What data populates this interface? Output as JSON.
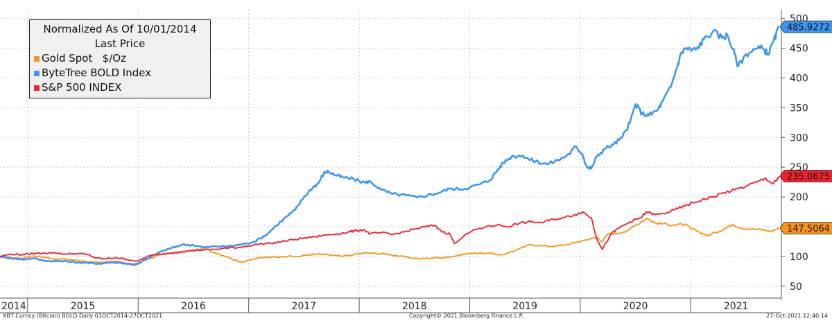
{
  "chart_data": {
    "type": "line",
    "legend": {
      "title": "Normalized As Of 10/01/2014",
      "subtitle": "Last Price",
      "placement": "top-left"
    },
    "yaxis": {
      "ticks": [
        50,
        100,
        150,
        200,
        250,
        300,
        350,
        400,
        450,
        500
      ],
      "ylim": [
        30,
        510
      ],
      "side": "right",
      "grid": true
    },
    "xaxis": {
      "year_labels": [
        "2014",
        "2015",
        "2016",
        "2017",
        "2018",
        "2019",
        "2020",
        "2021"
      ],
      "xlim": [
        2014.75,
        2021.82
      ],
      "grid": "vertical-years"
    },
    "series": [
      {
        "name": "Gold Spot   $/Oz",
        "color": "#f7941d",
        "last_label": "147.5064",
        "last_value": 147.5064,
        "points": [
          [
            2014.75,
            100
          ],
          [
            2014.85,
            98
          ],
          [
            2014.95,
            97
          ],
          [
            2015.05,
            101
          ],
          [
            2015.15,
            99
          ],
          [
            2015.25,
            95
          ],
          [
            2015.35,
            96
          ],
          [
            2015.45,
            93
          ],
          [
            2015.55,
            91
          ],
          [
            2015.65,
            90
          ],
          [
            2015.75,
            92
          ],
          [
            2015.85,
            90
          ],
          [
            2015.95,
            85
          ],
          [
            2016.0,
            87
          ],
          [
            2016.08,
            95
          ],
          [
            2016.2,
            103
          ],
          [
            2016.35,
            107
          ],
          [
            2016.45,
            109
          ],
          [
            2016.55,
            112
          ],
          [
            2016.62,
            112
          ],
          [
            2016.7,
            106
          ],
          [
            2016.8,
            100
          ],
          [
            2016.9,
            92
          ],
          [
            2016.96,
            91
          ],
          [
            2017.05,
            96
          ],
          [
            2017.15,
            99
          ],
          [
            2017.3,
            100
          ],
          [
            2017.45,
            100
          ],
          [
            2017.55,
            103
          ],
          [
            2017.65,
            104
          ],
          [
            2017.75,
            102
          ],
          [
            2017.85,
            100
          ],
          [
            2017.95,
            103
          ],
          [
            2018.05,
            106
          ],
          [
            2018.15,
            105
          ],
          [
            2018.25,
            104
          ],
          [
            2018.35,
            101
          ],
          [
            2018.45,
            98
          ],
          [
            2018.55,
            96
          ],
          [
            2018.62,
            97
          ],
          [
            2018.72,
            98
          ],
          [
            2018.85,
            100
          ],
          [
            2018.95,
            104
          ],
          [
            2019.05,
            106
          ],
          [
            2019.15,
            105
          ],
          [
            2019.3,
            103
          ],
          [
            2019.45,
            113
          ],
          [
            2019.55,
            120
          ],
          [
            2019.65,
            118
          ],
          [
            2019.75,
            117
          ],
          [
            2019.85,
            119
          ],
          [
            2019.95,
            123
          ],
          [
            2020.05,
            128
          ],
          [
            2020.15,
            132
          ],
          [
            2020.2,
            125
          ],
          [
            2020.25,
            138
          ],
          [
            2020.35,
            139
          ],
          [
            2020.45,
            146
          ],
          [
            2020.55,
            158
          ],
          [
            2020.6,
            164
          ],
          [
            2020.68,
            156
          ],
          [
            2020.75,
            155
          ],
          [
            2020.85,
            153
          ],
          [
            2020.95,
            154
          ],
          [
            2021.0,
            147
          ],
          [
            2021.08,
            141
          ],
          [
            2021.15,
            135
          ],
          [
            2021.22,
            140
          ],
          [
            2021.3,
            146
          ],
          [
            2021.38,
            154
          ],
          [
            2021.45,
            148
          ],
          [
            2021.55,
            146
          ],
          [
            2021.65,
            145
          ],
          [
            2021.72,
            142
          ],
          [
            2021.8,
            147.5064
          ]
        ]
      },
      {
        "name": "ByteTree BOLD Index",
        "color": "#3d97ee",
        "last_label": "485.9272",
        "last_value": 485.9272,
        "points": [
          [
            2014.75,
            100
          ],
          [
            2014.85,
            97
          ],
          [
            2014.95,
            95
          ],
          [
            2015.05,
            97
          ],
          [
            2015.15,
            93
          ],
          [
            2015.25,
            92
          ],
          [
            2015.35,
            92
          ],
          [
            2015.45,
            90
          ],
          [
            2015.55,
            89
          ],
          [
            2015.65,
            88
          ],
          [
            2015.75,
            90
          ],
          [
            2015.85,
            89
          ],
          [
            2015.95,
            87
          ],
          [
            2016.0,
            88
          ],
          [
            2016.08,
            96
          ],
          [
            2016.2,
            108
          ],
          [
            2016.3,
            114
          ],
          [
            2016.4,
            120
          ],
          [
            2016.5,
            119
          ],
          [
            2016.6,
            115
          ],
          [
            2016.7,
            117
          ],
          [
            2016.8,
            117
          ],
          [
            2016.9,
            119
          ],
          [
            2016.96,
            121
          ],
          [
            2017.05,
            125
          ],
          [
            2017.15,
            135
          ],
          [
            2017.25,
            152
          ],
          [
            2017.35,
            168
          ],
          [
            2017.42,
            178
          ],
          [
            2017.5,
            200
          ],
          [
            2017.58,
            216
          ],
          [
            2017.63,
            223
          ],
          [
            2017.68,
            240
          ],
          [
            2017.72,
            243
          ],
          [
            2017.78,
            237
          ],
          [
            2017.85,
            233
          ],
          [
            2017.95,
            230
          ],
          [
            2018.05,
            224
          ],
          [
            2018.1,
            226
          ],
          [
            2018.2,
            212
          ],
          [
            2018.3,
            205
          ],
          [
            2018.42,
            203
          ],
          [
            2018.52,
            199
          ],
          [
            2018.62,
            203
          ],
          [
            2018.72,
            207
          ],
          [
            2018.82,
            214
          ],
          [
            2018.92,
            213
          ],
          [
            2019.0,
            216
          ],
          [
            2019.1,
            222
          ],
          [
            2019.18,
            228
          ],
          [
            2019.25,
            245
          ],
          [
            2019.3,
            257
          ],
          [
            2019.38,
            268
          ],
          [
            2019.48,
            270
          ],
          [
            2019.55,
            262
          ],
          [
            2019.62,
            259
          ],
          [
            2019.7,
            255
          ],
          [
            2019.8,
            262
          ],
          [
            2019.9,
            272
          ],
          [
            2019.96,
            285
          ],
          [
            2020.02,
            272
          ],
          [
            2020.06,
            250
          ],
          [
            2020.1,
            248
          ],
          [
            2020.15,
            268
          ],
          [
            2020.22,
            281
          ],
          [
            2020.3,
            288
          ],
          [
            2020.38,
            300
          ],
          [
            2020.45,
            325
          ],
          [
            2020.5,
            356
          ],
          [
            2020.56,
            340
          ],
          [
            2020.62,
            337
          ],
          [
            2020.7,
            346
          ],
          [
            2020.75,
            362
          ],
          [
            2020.82,
            385
          ],
          [
            2020.87,
            415
          ],
          [
            2020.91,
            440
          ],
          [
            2020.95,
            450
          ],
          [
            2021.0,
            447
          ],
          [
            2021.05,
            448
          ],
          [
            2021.12,
            465
          ],
          [
            2021.2,
            478
          ],
          [
            2021.28,
            468
          ],
          [
            2021.33,
            472
          ],
          [
            2021.38,
            449
          ],
          [
            2021.43,
            420
          ],
          [
            2021.5,
            440
          ],
          [
            2021.58,
            448
          ],
          [
            2021.65,
            450
          ],
          [
            2021.7,
            440
          ],
          [
            2021.75,
            462
          ],
          [
            2021.8,
            485.9272
          ]
        ]
      },
      {
        "name": "S&P 500 INDEX",
        "color": "#ee2233",
        "last_label": "235.0675",
        "last_value": 235.0675,
        "points": [
          [
            2014.75,
            100
          ],
          [
            2014.85,
            104
          ],
          [
            2014.95,
            103
          ],
          [
            2015.05,
            105
          ],
          [
            2015.15,
            106
          ],
          [
            2015.25,
            106
          ],
          [
            2015.35,
            104
          ],
          [
            2015.45,
            105
          ],
          [
            2015.55,
            103
          ],
          [
            2015.62,
            97
          ],
          [
            2015.7,
            96
          ],
          [
            2015.8,
            98
          ],
          [
            2015.9,
            95
          ],
          [
            2016.0,
            92
          ],
          [
            2016.08,
            100
          ],
          [
            2016.2,
            104
          ],
          [
            2016.3,
            106
          ],
          [
            2016.4,
            108
          ],
          [
            2016.5,
            110
          ],
          [
            2016.6,
            111
          ],
          [
            2016.7,
            112
          ],
          [
            2016.8,
            114
          ],
          [
            2016.9,
            115
          ],
          [
            2017.0,
            118
          ],
          [
            2017.1,
            121
          ],
          [
            2017.2,
            122
          ],
          [
            2017.3,
            125
          ],
          [
            2017.4,
            128
          ],
          [
            2017.5,
            131
          ],
          [
            2017.6,
            133
          ],
          [
            2017.7,
            136
          ],
          [
            2017.8,
            138
          ],
          [
            2017.9,
            141
          ],
          [
            2017.96,
            143
          ],
          [
            2018.04,
            145
          ],
          [
            2018.1,
            138
          ],
          [
            2018.2,
            140
          ],
          [
            2018.3,
            137
          ],
          [
            2018.4,
            141
          ],
          [
            2018.5,
            146
          ],
          [
            2018.6,
            150
          ],
          [
            2018.68,
            152
          ],
          [
            2018.76,
            141
          ],
          [
            2018.82,
            138
          ],
          [
            2018.86,
            122
          ],
          [
            2018.95,
            135
          ],
          [
            2019.05,
            145
          ],
          [
            2019.15,
            150
          ],
          [
            2019.25,
            153
          ],
          [
            2019.35,
            150
          ],
          [
            2019.45,
            156
          ],
          [
            2019.55,
            158
          ],
          [
            2019.65,
            157
          ],
          [
            2019.75,
            162
          ],
          [
            2019.85,
            165
          ],
          [
            2019.95,
            170
          ],
          [
            2020.02,
            175
          ],
          [
            2020.1,
            165
          ],
          [
            2020.15,
            130
          ],
          [
            2020.2,
            112
          ],
          [
            2020.28,
            138
          ],
          [
            2020.35,
            148
          ],
          [
            2020.45,
            158
          ],
          [
            2020.55,
            165
          ],
          [
            2020.6,
            175
          ],
          [
            2020.68,
            170
          ],
          [
            2020.75,
            172
          ],
          [
            2020.85,
            178
          ],
          [
            2020.95,
            185
          ],
          [
            2021.02,
            190
          ],
          [
            2021.1,
            195
          ],
          [
            2021.2,
            200
          ],
          [
            2021.3,
            207
          ],
          [
            2021.4,
            212
          ],
          [
            2021.5,
            218
          ],
          [
            2021.6,
            225
          ],
          [
            2021.68,
            231
          ],
          [
            2021.74,
            222
          ],
          [
            2021.78,
            228
          ],
          [
            2021.8,
            235.0675
          ]
        ]
      }
    ]
  },
  "footer": {
    "left": "XBT Curncy (Bitcoin) BOLD  Daily 01OCT2014-27OCT2021",
    "center": "Copyright© 2021 Bloomberg Finance L.P.",
    "right": "27-Oct-2021 12:40:14"
  }
}
